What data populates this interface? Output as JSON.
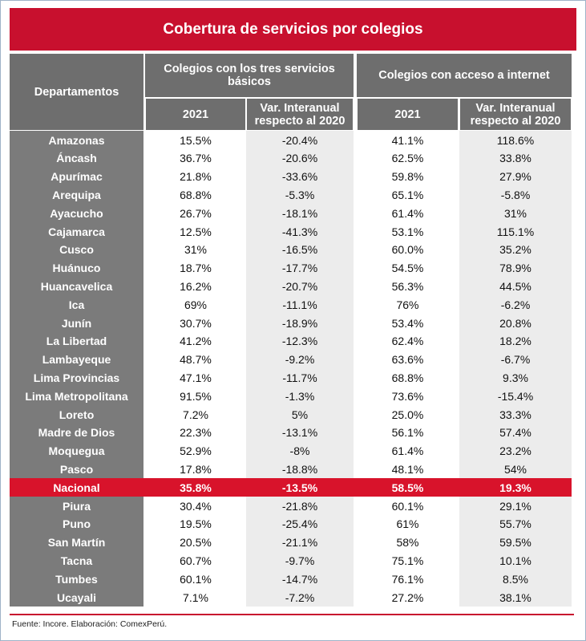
{
  "title": "Cobertura de servicios por colegios",
  "header": {
    "department": "Departamentos",
    "groups": [
      "Colegios con los tres servicios básicos",
      "Colegios con acceso a internet"
    ],
    "subheaders": [
      "2021",
      "Var. Interanual respecto al 2020",
      "2021",
      "Var. Interanual respecto al 2020"
    ]
  },
  "table": {
    "rows": [
      [
        "Amazonas",
        "15.5%",
        "-20.4%",
        "41.1%",
        "118.6%"
      ],
      [
        "Áncash",
        "36.7%",
        "-20.6%",
        "62.5%",
        "33.8%"
      ],
      [
        "Apurímac",
        "21.8%",
        "-33.6%",
        "59.8%",
        "27.9%"
      ],
      [
        "Arequipa",
        "68.8%",
        "-5.3%",
        "65.1%",
        "-5.8%"
      ],
      [
        "Ayacucho",
        "26.7%",
        "-18.1%",
        "61.4%",
        "31%"
      ],
      [
        "Cajamarca",
        "12.5%",
        "-41.3%",
        "53.1%",
        "115.1%"
      ],
      [
        "Cusco",
        "31%",
        "-16.5%",
        "60.0%",
        "35.2%"
      ],
      [
        "Huánuco",
        "18.7%",
        "-17.7%",
        "54.5%",
        "78.9%"
      ],
      [
        "Huancavelica",
        "16.2%",
        "-20.7%",
        "56.3%",
        "44.5%"
      ],
      [
        "Ica",
        "69%",
        "-11.1%",
        "76%",
        "-6.2%"
      ],
      [
        "Junín",
        "30.7%",
        "-18.9%",
        "53.4%",
        "20.8%"
      ],
      [
        "La Libertad",
        "41.2%",
        "-12.3%",
        "62.4%",
        "18.2%"
      ],
      [
        "Lambayeque",
        "48.7%",
        "-9.2%",
        "63.6%",
        "-6.7%"
      ],
      [
        "Lima Provincias",
        "47.1%",
        "-11.7%",
        "68.8%",
        "9.3%"
      ],
      [
        "Lima Metropolitana",
        "91.5%",
        "-1.3%",
        "73.6%",
        "-15.4%"
      ],
      [
        "Loreto",
        "7.2%",
        "5%",
        "25.0%",
        "33.3%"
      ],
      [
        "Madre de Dios",
        "22.3%",
        "-13.1%",
        "56.1%",
        "57.4%"
      ],
      [
        "Moquegua",
        "52.9%",
        "-8%",
        "61.4%",
        "23.2%"
      ],
      [
        "Pasco",
        "17.8%",
        "-18.8%",
        "48.1%",
        "54%"
      ],
      [
        "Nacional",
        "35.8%",
        "-13.5%",
        "58.5%",
        "19.3%"
      ],
      [
        "Piura",
        "30.4%",
        "-21.8%",
        "60.1%",
        "29.1%"
      ],
      [
        "Puno",
        "19.5%",
        "-25.4%",
        "61%",
        "55.7%"
      ],
      [
        "San Martín",
        "20.5%",
        "-21.1%",
        "58%",
        "59.5%"
      ],
      [
        "Tacna",
        "60.7%",
        "-9.7%",
        "75.1%",
        "10.1%"
      ],
      [
        "Tumbes",
        "60.1%",
        "-14.7%",
        "76.1%",
        "8.5%"
      ],
      [
        "Ucayali",
        "7.1%",
        "-7.2%",
        "27.2%",
        "38.1%"
      ]
    ],
    "highlight_row": "Nacional"
  },
  "footer": "Fuente: Incore. Elaboración: ComexPerú."
}
